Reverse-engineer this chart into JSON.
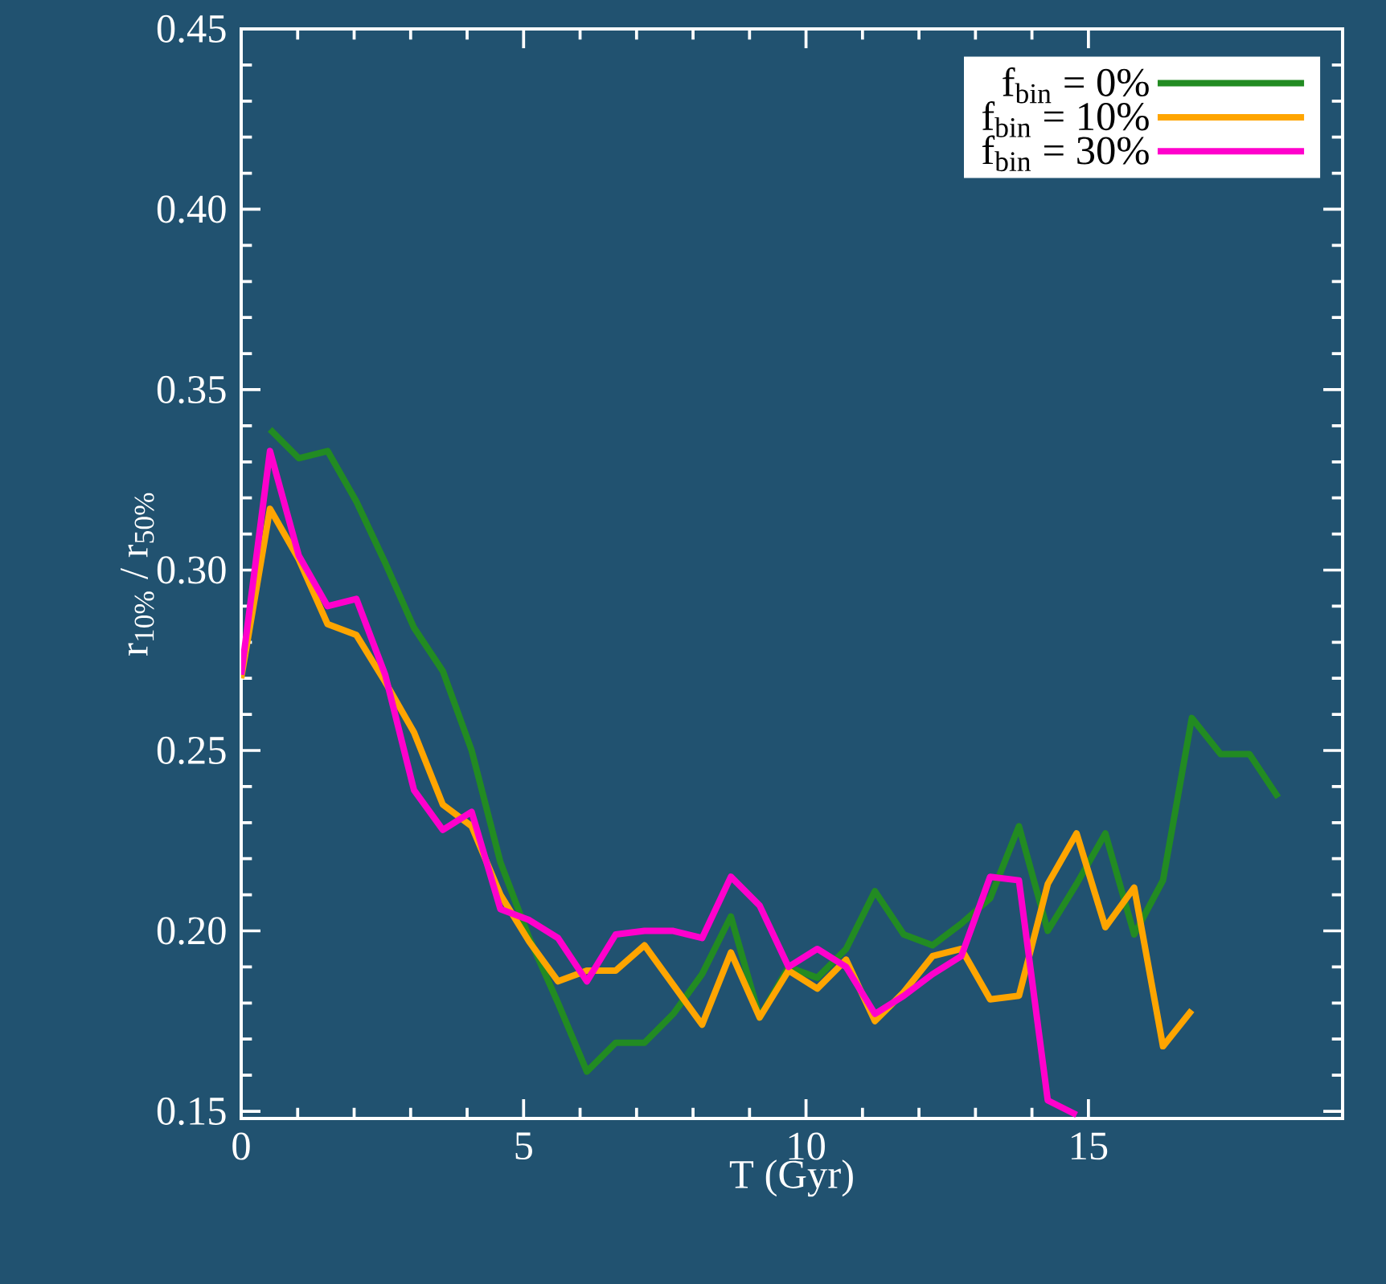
{
  "chart_data": {
    "type": "line",
    "xlabel": "T (Gyr)",
    "ylabel": "r$_{10%}$ / r$_{50%}$",
    "xlim": [
      0,
      19.5
    ],
    "ylim": [
      0.148,
      0.45
    ],
    "xticks": [
      0,
      5,
      10,
      15
    ],
    "yticks": [
      0.15,
      {
        "value": 0.2,
        "label": "0.20"
      },
      0.25,
      {
        "value": 0.3,
        "label": "0.30"
      },
      0.35,
      {
        "value": 0.4,
        "label": "0.40"
      },
      0.45
    ],
    "legend": "top right",
    "marker": "none",
    "line_style": "solid",
    "series": [
      {
        "name": "f$_{bin}$ =    0%",
        "color": "#228b22",
        "x": [
          0.51,
          1.02,
          1.53,
          2.04,
          2.55,
          3.06,
          3.57,
          4.08,
          4.59,
          5.1,
          5.61,
          6.12,
          6.63,
          7.14,
          7.65,
          8.16,
          8.67,
          9.18,
          9.69,
          10.2,
          10.71,
          11.22,
          11.73,
          12.24,
          12.75,
          13.26,
          13.77,
          14.28,
          14.79,
          15.3,
          15.81,
          16.32,
          16.83,
          17.34,
          17.85,
          18.36
        ],
        "values": [
          0.339,
          0.331,
          0.333,
          0.319,
          0.302,
          0.284,
          0.272,
          0.25,
          0.219,
          0.198,
          0.18,
          0.161,
          0.169,
          0.169,
          0.177,
          0.188,
          0.204,
          0.176,
          0.19,
          0.187,
          0.195,
          0.211,
          0.199,
          0.196,
          0.202,
          0.209,
          0.229,
          0.2,
          0.213,
          0.227,
          0.199,
          0.214,
          0.259,
          0.249,
          0.249,
          0.237
        ]
      },
      {
        "name": "f$_{bin}$ =   10%",
        "color": "#ffa500",
        "x": [
          0,
          0.51,
          1.02,
          1.53,
          2.04,
          2.55,
          3.06,
          3.57,
          4.08,
          4.59,
          5.1,
          5.61,
          6.12,
          6.63,
          7.14,
          7.65,
          8.16,
          8.67,
          9.18,
          9.69,
          10.2,
          10.71,
          11.22,
          11.73,
          12.24,
          12.75,
          13.26,
          13.77,
          14.28,
          14.79,
          15.3,
          15.81,
          16.32,
          16.83
        ],
        "values": [
          0.27,
          0.317,
          0.303,
          0.285,
          0.282,
          0.269,
          0.255,
          0.235,
          0.229,
          0.21,
          0.197,
          0.186,
          0.189,
          0.189,
          0.196,
          0.185,
          0.174,
          0.194,
          0.176,
          0.189,
          0.184,
          0.192,
          0.175,
          0.183,
          0.193,
          0.195,
          0.181,
          0.182,
          0.213,
          0.227,
          0.201,
          0.212,
          0.168,
          0.178
        ]
      },
      {
        "name": "f$_{bin}$ =   30%",
        "color": "#ff00cc",
        "x": [
          0,
          0.51,
          1.02,
          1.53,
          2.04,
          2.55,
          3.06,
          3.57,
          4.08,
          4.59,
          5.1,
          5.61,
          6.12,
          6.63,
          7.14,
          7.65,
          8.16,
          8.67,
          9.18,
          9.69,
          10.2,
          10.71,
          11.22,
          11.73,
          12.24,
          12.75,
          13.26,
          13.77,
          14.28,
          14.79
        ],
        "values": [
          0.271,
          0.333,
          0.304,
          0.29,
          0.292,
          0.271,
          0.239,
          0.228,
          0.233,
          0.206,
          0.203,
          0.198,
          0.186,
          0.199,
          0.2,
          0.2,
          0.198,
          0.215,
          0.207,
          0.19,
          0.195,
          0.19,
          0.177,
          0.182,
          0.188,
          0.193,
          0.215,
          0.214,
          0.153,
          0.149
        ]
      }
    ]
  }
}
